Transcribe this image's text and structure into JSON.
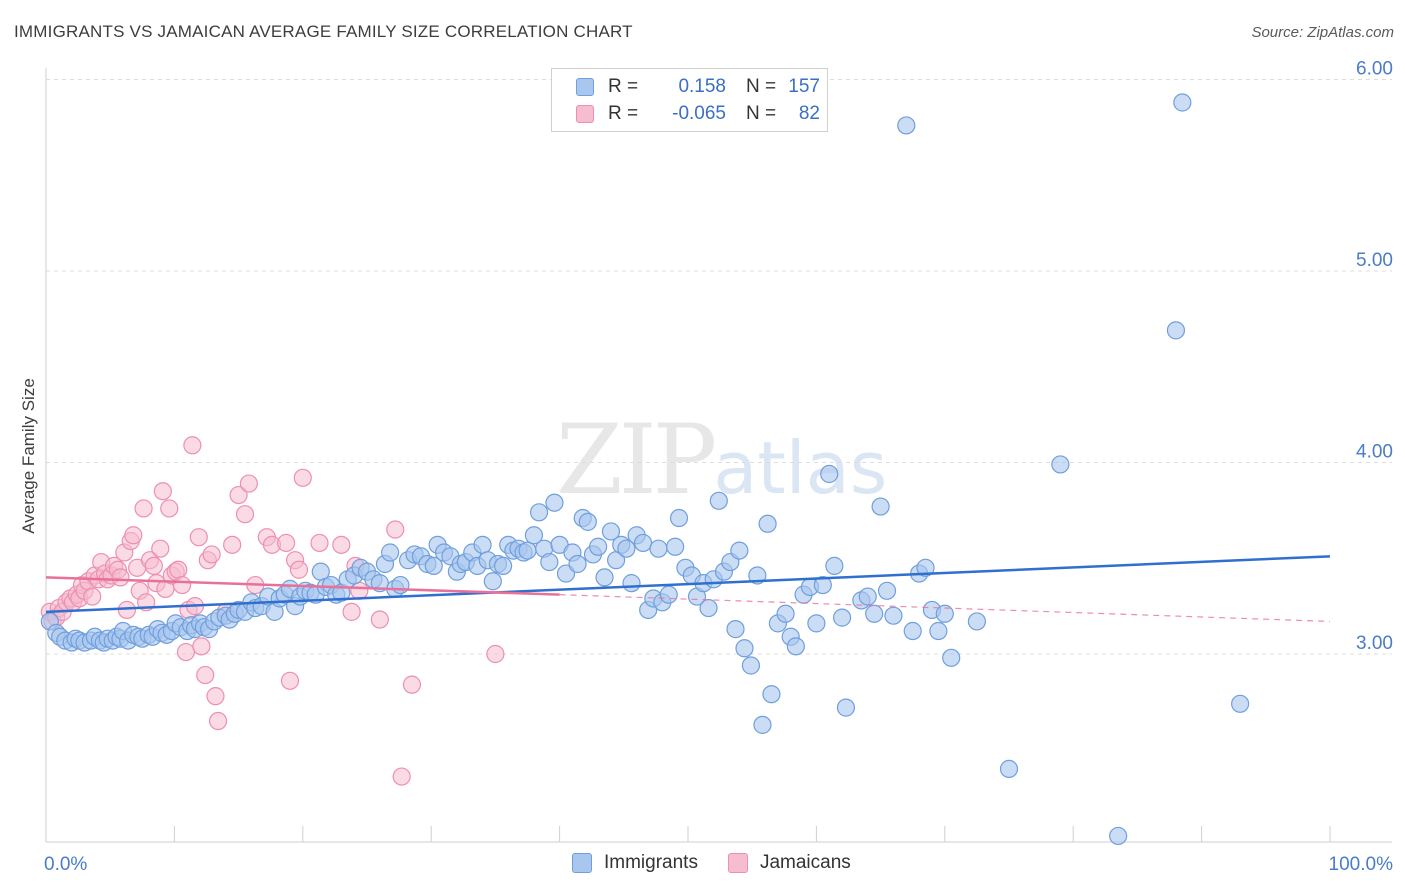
{
  "title": "IMMIGRANTS VS JAMAICAN AVERAGE FAMILY SIZE CORRELATION CHART",
  "source": "Source: ZipAtlas.com",
  "watermark": {
    "zip": "ZIP",
    "atlas": "atlas"
  },
  "colors": {
    "immigrants_fill": "#a9c7ee",
    "immigrants_stroke": "#6f9fdd",
    "immigrants_line": "#2f6fcf",
    "jamaicans_fill": "#f6bcd0",
    "jamaicans_stroke": "#ee8fb0",
    "jamaicans_line": "#e8709a",
    "accent_text": "#3a6fc4",
    "grid": "#dddddd"
  },
  "legend": {
    "rows": [
      {
        "r_label": "R =",
        "r_value": "0.158",
        "n_label": "N =",
        "n_value": "157"
      },
      {
        "r_label": "R =",
        "r_value": "-0.065",
        "n_label": "N =",
        "n_value": "82"
      }
    ],
    "bottom": [
      "Immigrants",
      "Jamaicans"
    ]
  },
  "chart_data": {
    "type": "scatter",
    "xlabel": "",
    "ylabel": "Average Family Size",
    "x_tick_labels": [
      "0.0%",
      "100.0%"
    ],
    "y_tick_labels": [
      "3.00",
      "4.00",
      "5.00",
      "6.00"
    ],
    "xlim": [
      0,
      100
    ],
    "ylim": [
      2.0,
      6.1
    ],
    "grid": true,
    "legend_position": "top-center",
    "series": [
      {
        "name": "Immigrants",
        "trend": [
          [
            0,
            3.22
          ],
          [
            100,
            3.51
          ]
        ],
        "points": [
          [
            0.3,
            3.17
          ],
          [
            0.8,
            3.11
          ],
          [
            1.1,
            3.09
          ],
          [
            1.5,
            3.07
          ],
          [
            2.0,
            3.06
          ],
          [
            2.3,
            3.08
          ],
          [
            2.6,
            3.07
          ],
          [
            3.0,
            3.06
          ],
          [
            3.5,
            3.07
          ],
          [
            3.8,
            3.09
          ],
          [
            4.2,
            3.07
          ],
          [
            4.5,
            3.06
          ],
          [
            4.8,
            3.08
          ],
          [
            5.2,
            3.07
          ],
          [
            5.5,
            3.09
          ],
          [
            5.8,
            3.08
          ],
          [
            6.0,
            3.12
          ],
          [
            6.4,
            3.07
          ],
          [
            6.8,
            3.1
          ],
          [
            7.2,
            3.09
          ],
          [
            7.5,
            3.08
          ],
          [
            8.0,
            3.1
          ],
          [
            8.3,
            3.09
          ],
          [
            8.7,
            3.13
          ],
          [
            9.0,
            3.11
          ],
          [
            9.4,
            3.1
          ],
          [
            9.8,
            3.12
          ],
          [
            10.1,
            3.16
          ],
          [
            10.5,
            3.14
          ],
          [
            11.0,
            3.12
          ],
          [
            11.3,
            3.15
          ],
          [
            11.6,
            3.13
          ],
          [
            12.0,
            3.16
          ],
          [
            12.3,
            3.14
          ],
          [
            12.7,
            3.13
          ],
          [
            13.1,
            3.17
          ],
          [
            13.5,
            3.19
          ],
          [
            14.0,
            3.2
          ],
          [
            14.3,
            3.18
          ],
          [
            14.7,
            3.21
          ],
          [
            15.0,
            3.23
          ],
          [
            15.5,
            3.22
          ],
          [
            16.0,
            3.27
          ],
          [
            16.3,
            3.24
          ],
          [
            16.8,
            3.25
          ],
          [
            17.3,
            3.3
          ],
          [
            17.8,
            3.22
          ],
          [
            18.2,
            3.29
          ],
          [
            18.6,
            3.31
          ],
          [
            19.0,
            3.34
          ],
          [
            19.4,
            3.25
          ],
          [
            19.8,
            3.3
          ],
          [
            20.2,
            3.33
          ],
          [
            20.6,
            3.32
          ],
          [
            21.0,
            3.31
          ],
          [
            21.4,
            3.43
          ],
          [
            21.8,
            3.35
          ],
          [
            22.2,
            3.36
          ],
          [
            22.6,
            3.31
          ],
          [
            23.0,
            3.32
          ],
          [
            23.5,
            3.39
          ],
          [
            24.0,
            3.41
          ],
          [
            24.5,
            3.45
          ],
          [
            25.0,
            3.43
          ],
          [
            25.5,
            3.39
          ],
          [
            26.0,
            3.37
          ],
          [
            26.4,
            3.47
          ],
          [
            26.8,
            3.53
          ],
          [
            27.2,
            3.34
          ],
          [
            27.6,
            3.36
          ],
          [
            28.2,
            3.49
          ],
          [
            28.7,
            3.52
          ],
          [
            29.2,
            3.51
          ],
          [
            29.7,
            3.47
          ],
          [
            30.2,
            3.46
          ],
          [
            30.5,
            3.57
          ],
          [
            31.0,
            3.53
          ],
          [
            31.5,
            3.51
          ],
          [
            32.0,
            3.43
          ],
          [
            32.3,
            3.47
          ],
          [
            32.7,
            3.48
          ],
          [
            33.2,
            3.53
          ],
          [
            33.6,
            3.46
          ],
          [
            34.0,
            3.57
          ],
          [
            34.4,
            3.49
          ],
          [
            34.8,
            3.38
          ],
          [
            35.2,
            3.47
          ],
          [
            35.6,
            3.46
          ],
          [
            36.0,
            3.57
          ],
          [
            36.4,
            3.54
          ],
          [
            36.8,
            3.55
          ],
          [
            37.2,
            3.53
          ],
          [
            37.5,
            3.54
          ],
          [
            38.0,
            3.62
          ],
          [
            38.4,
            3.74
          ],
          [
            38.8,
            3.55
          ],
          [
            39.2,
            3.48
          ],
          [
            39.6,
            3.79
          ],
          [
            40.0,
            3.57
          ],
          [
            40.5,
            3.42
          ],
          [
            41.0,
            3.53
          ],
          [
            41.4,
            3.47
          ],
          [
            41.8,
            3.71
          ],
          [
            42.2,
            3.69
          ],
          [
            42.6,
            3.52
          ],
          [
            43.0,
            3.56
          ],
          [
            43.5,
            3.4
          ],
          [
            44.0,
            3.64
          ],
          [
            44.4,
            3.49
          ],
          [
            44.8,
            3.57
          ],
          [
            45.2,
            3.55
          ],
          [
            45.6,
            3.37
          ],
          [
            46.0,
            3.62
          ],
          [
            46.5,
            3.58
          ],
          [
            46.9,
            3.23
          ],
          [
            47.3,
            3.29
          ],
          [
            47.7,
            3.55
          ],
          [
            48.0,
            3.27
          ],
          [
            48.5,
            3.31
          ],
          [
            49.0,
            3.56
          ],
          [
            49.3,
            3.71
          ],
          [
            49.8,
            3.45
          ],
          [
            50.3,
            3.41
          ],
          [
            50.7,
            3.3
          ],
          [
            51.2,
            3.37
          ],
          [
            51.6,
            3.24
          ],
          [
            52.0,
            3.39
          ],
          [
            52.4,
            3.8
          ],
          [
            52.8,
            3.43
          ],
          [
            53.3,
            3.48
          ],
          [
            53.7,
            3.13
          ],
          [
            54.0,
            3.54
          ],
          [
            54.4,
            3.03
          ],
          [
            54.9,
            2.94
          ],
          [
            55.4,
            3.41
          ],
          [
            55.8,
            2.63
          ],
          [
            56.2,
            3.68
          ],
          [
            56.5,
            2.79
          ],
          [
            57.0,
            3.16
          ],
          [
            57.6,
            3.21
          ],
          [
            58.0,
            3.09
          ],
          [
            58.4,
            3.04
          ],
          [
            59.0,
            3.31
          ],
          [
            59.5,
            3.35
          ],
          [
            60.0,
            3.16
          ],
          [
            60.5,
            3.36
          ],
          [
            61.0,
            3.94
          ],
          [
            61.4,
            3.46
          ],
          [
            62.0,
            3.19
          ],
          [
            62.3,
            2.72
          ],
          [
            63.5,
            3.28
          ],
          [
            64.0,
            3.3
          ],
          [
            64.5,
            3.21
          ],
          [
            65.0,
            3.77
          ],
          [
            65.5,
            3.33
          ],
          [
            66.0,
            3.2
          ],
          [
            67.0,
            5.76
          ],
          [
            67.5,
            3.12
          ],
          [
            68.0,
            3.42
          ],
          [
            68.5,
            3.45
          ],
          [
            69.0,
            3.23
          ],
          [
            69.5,
            3.12
          ],
          [
            70.0,
            3.21
          ],
          [
            70.5,
            2.98
          ],
          [
            72.5,
            3.17
          ],
          [
            75.0,
            2.4
          ],
          [
            79.0,
            3.99
          ],
          [
            83.5,
            2.05
          ],
          [
            88.0,
            4.69
          ],
          [
            88.5,
            5.88
          ],
          [
            93.0,
            2.74
          ]
        ]
      },
      {
        "name": "Jamaicans",
        "trend": [
          [
            0,
            3.4
          ],
          [
            40,
            3.31
          ]
        ],
        "trend_dashed": [
          [
            40,
            3.31
          ],
          [
            100,
            3.17
          ]
        ],
        "points": [
          [
            0.3,
            3.22
          ],
          [
            0.5,
            3.17
          ],
          [
            0.8,
            3.19
          ],
          [
            1.0,
            3.24
          ],
          [
            1.3,
            3.22
          ],
          [
            1.6,
            3.27
          ],
          [
            1.9,
            3.29
          ],
          [
            2.1,
            3.27
          ],
          [
            2.4,
            3.31
          ],
          [
            2.6,
            3.29
          ],
          [
            2.8,
            3.36
          ],
          [
            3.0,
            3.33
          ],
          [
            3.3,
            3.38
          ],
          [
            3.6,
            3.3
          ],
          [
            3.8,
            3.41
          ],
          [
            4.1,
            3.39
          ],
          [
            4.3,
            3.48
          ],
          [
            4.6,
            3.42
          ],
          [
            4.8,
            3.39
          ],
          [
            5.1,
            3.41
          ],
          [
            5.3,
            3.46
          ],
          [
            5.6,
            3.44
          ],
          [
            5.8,
            3.4
          ],
          [
            6.1,
            3.53
          ],
          [
            6.3,
            3.23
          ],
          [
            6.6,
            3.59
          ],
          [
            6.8,
            3.62
          ],
          [
            7.1,
            3.45
          ],
          [
            7.3,
            3.33
          ],
          [
            7.6,
            3.76
          ],
          [
            7.8,
            3.27
          ],
          [
            8.1,
            3.49
          ],
          [
            8.4,
            3.46
          ],
          [
            8.6,
            3.37
          ],
          [
            8.9,
            3.55
          ],
          [
            9.1,
            3.85
          ],
          [
            9.3,
            3.34
          ],
          [
            9.6,
            3.76
          ],
          [
            9.8,
            3.41
          ],
          [
            10.1,
            3.43
          ],
          [
            10.3,
            3.44
          ],
          [
            10.6,
            3.36
          ],
          [
            10.9,
            3.01
          ],
          [
            11.1,
            3.23
          ],
          [
            11.4,
            4.09
          ],
          [
            11.6,
            3.25
          ],
          [
            11.9,
            3.61
          ],
          [
            12.1,
            3.04
          ],
          [
            12.4,
            2.89
          ],
          [
            12.6,
            3.49
          ],
          [
            12.9,
            3.52
          ],
          [
            13.2,
            2.78
          ],
          [
            13.4,
            2.65
          ],
          [
            14.0,
            3.22
          ],
          [
            14.5,
            3.57
          ],
          [
            15.0,
            3.83
          ],
          [
            15.5,
            3.73
          ],
          [
            15.8,
            3.89
          ],
          [
            16.3,
            3.36
          ],
          [
            17.2,
            3.61
          ],
          [
            17.6,
            3.57
          ],
          [
            18.7,
            3.58
          ],
          [
            19.0,
            2.86
          ],
          [
            19.4,
            3.49
          ],
          [
            19.7,
            3.44
          ],
          [
            20.0,
            3.92
          ],
          [
            21.3,
            3.58
          ],
          [
            23.0,
            3.57
          ],
          [
            23.8,
            3.22
          ],
          [
            24.1,
            3.46
          ],
          [
            24.4,
            3.33
          ],
          [
            26.0,
            3.18
          ],
          [
            27.2,
            3.65
          ],
          [
            27.7,
            2.36
          ],
          [
            28.5,
            2.84
          ],
          [
            35.0,
            3.0
          ]
        ]
      }
    ]
  }
}
